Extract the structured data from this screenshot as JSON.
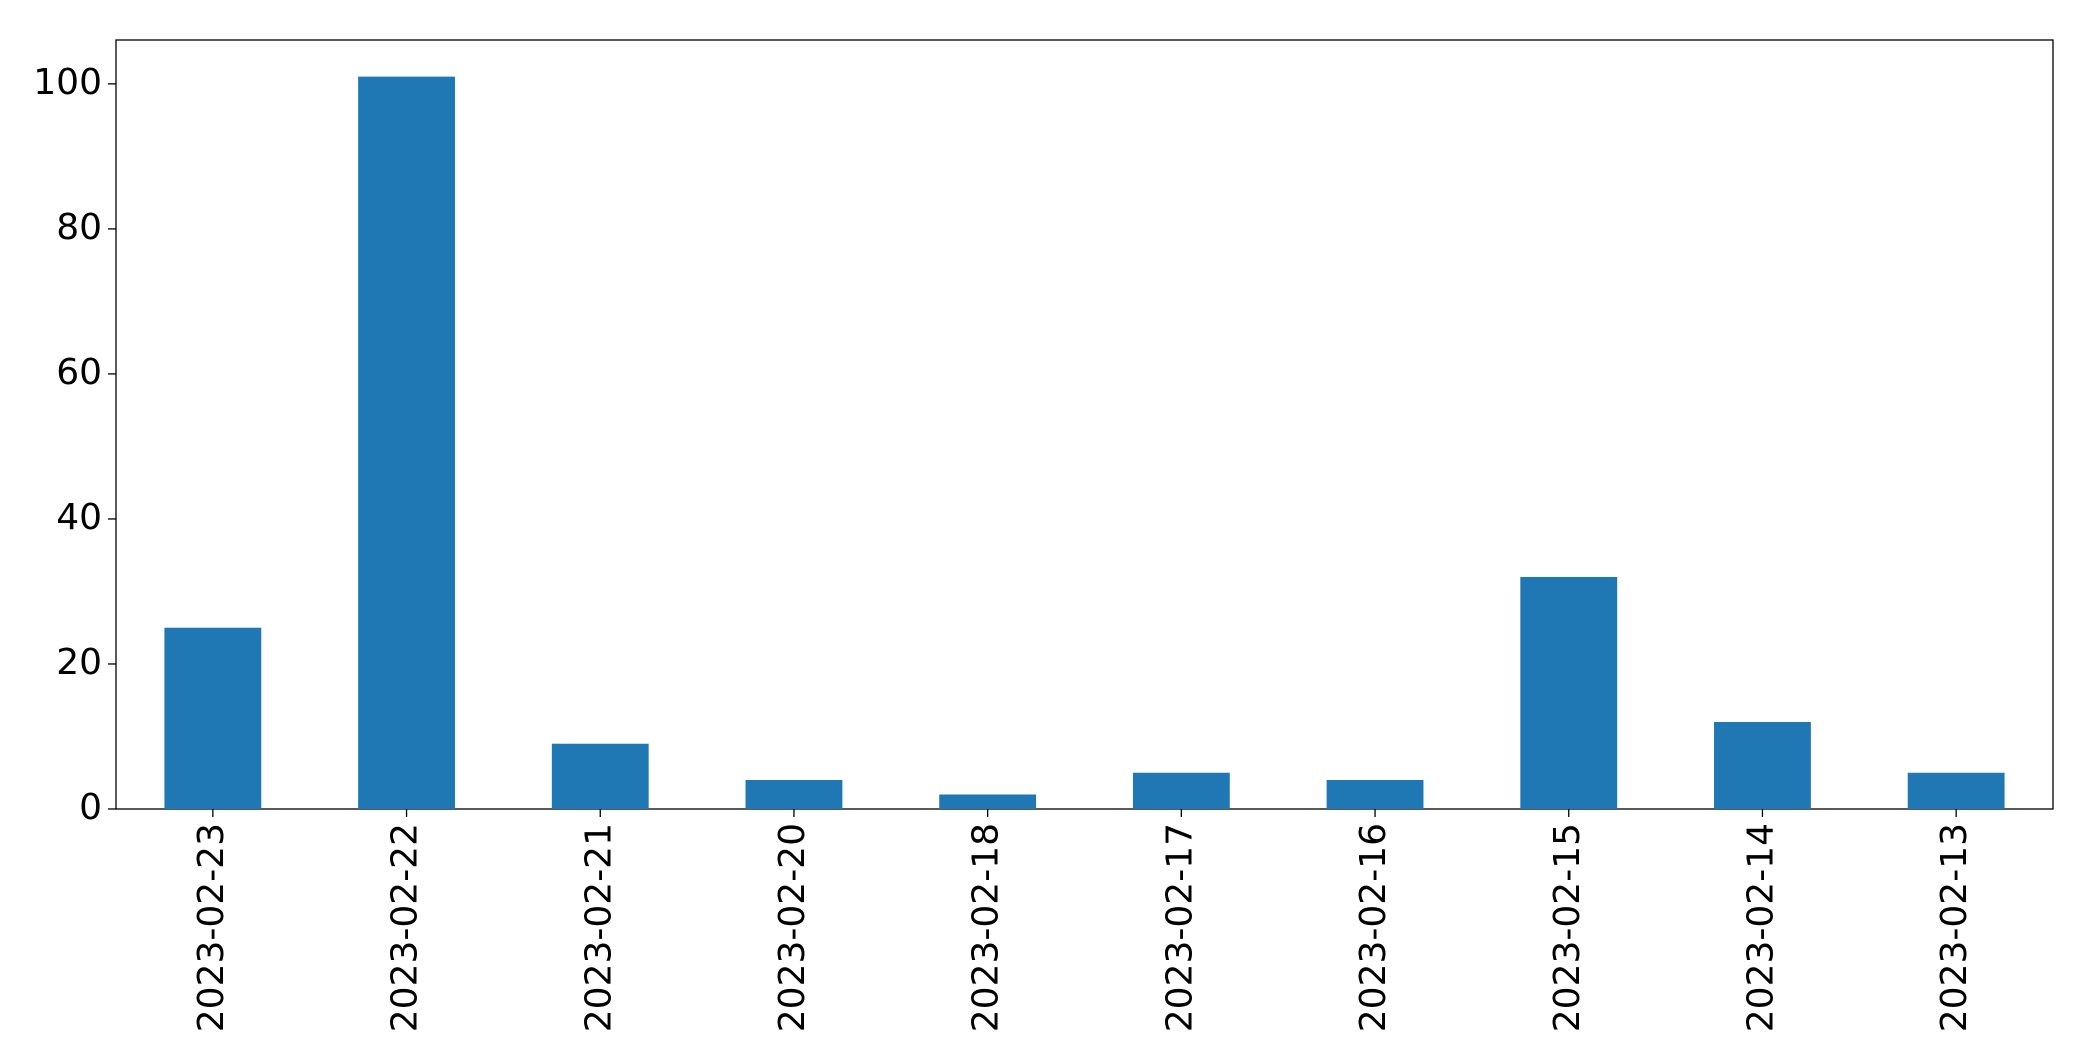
{
  "chart_data": {
    "type": "bar",
    "categories": [
      "2023-02-23",
      "2023-02-22",
      "2023-02-21",
      "2023-02-20",
      "2023-02-18",
      "2023-02-17",
      "2023-02-16",
      "2023-02-15",
      "2023-02-14",
      "2023-02-13"
    ],
    "values": [
      25,
      101,
      9,
      4,
      2,
      5,
      4,
      32,
      12,
      5
    ],
    "color": "#1f77b4",
    "ylim": [
      0,
      106.05
    ],
    "yticks": [
      0,
      20,
      40,
      60,
      80,
      100
    ],
    "grid": false
  }
}
